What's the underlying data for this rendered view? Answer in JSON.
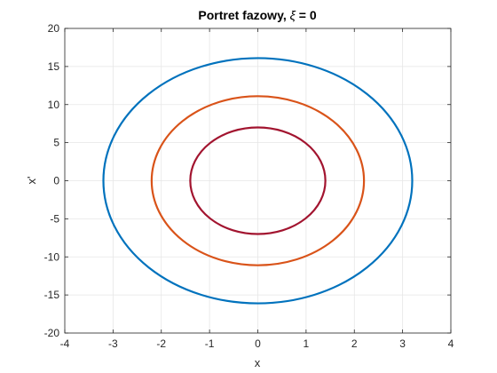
{
  "chart_data": {
    "type": "line",
    "title_main": "Portret fazowy, ",
    "title_symbol": "ξ",
    "title_rest": " = 0",
    "xlabel": "x",
    "ylabel": "x'",
    "xlim": [
      -4,
      4
    ],
    "ylim": [
      -20,
      20
    ],
    "xticks": [
      -4,
      -3,
      -2,
      -1,
      0,
      1,
      2,
      3,
      4
    ],
    "yticks": [
      -20,
      -15,
      -10,
      -5,
      0,
      5,
      10,
      15,
      20
    ],
    "grid": true,
    "series": [
      {
        "color": "#0072BD",
        "x_amplitude": 3.2,
        "y_amplitude": 16.1
      },
      {
        "color": "#D95319",
        "x_amplitude": 2.2,
        "y_amplitude": 11.1
      },
      {
        "color": "#A2142F",
        "x_amplitude": 1.4,
        "y_amplitude": 7.0
      }
    ]
  }
}
